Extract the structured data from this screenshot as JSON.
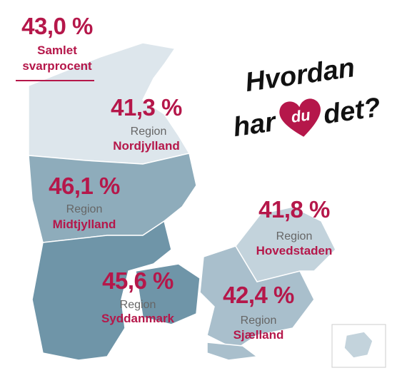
{
  "summary": {
    "value": "43,0 %",
    "label_lines": [
      "Samlet",
      "svarprocent"
    ]
  },
  "title": {
    "line1": "Hvordan",
    "before_heart": "har",
    "heart": "du",
    "after_heart": "det?"
  },
  "regions": [
    {
      "value": "41,3 %",
      "prefix": "Region",
      "name": "Nordjylland"
    },
    {
      "value": "46,1 %",
      "prefix": "Region",
      "name": "Midtjylland"
    },
    {
      "value": "41,8 %",
      "prefix": "Region",
      "name": "Hovedstaden"
    },
    {
      "value": "45,6 %",
      "prefix": "Region",
      "name": "Syddanmark"
    },
    {
      "value": "42,4 %",
      "prefix": "Region",
      "name": "Sjælland"
    }
  ]
}
